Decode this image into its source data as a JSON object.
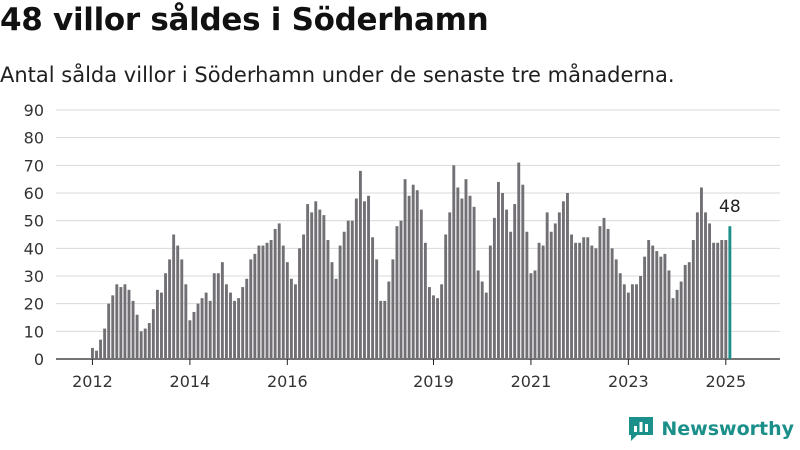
{
  "header": {
    "title": "48 villor såldes i Söderhamn",
    "subtitle": "Antal sålda villor i Söderhamn under de senaste tre månaderna."
  },
  "brand": {
    "name": "Newsworthy"
  },
  "colors": {
    "bar": "#727075",
    "highlight": "#1b8f8a",
    "grid": "#d9d9d9",
    "axis": "#222222"
  },
  "chart_data": {
    "type": "bar",
    "ylim": [
      0,
      90
    ],
    "yticks": [
      0,
      10,
      20,
      30,
      40,
      50,
      60,
      70,
      80,
      90
    ],
    "grid": true,
    "xticks": [
      {
        "label": "2012",
        "x": "2012-01"
      },
      {
        "label": "2014",
        "x": "2014-01"
      },
      {
        "label": "2016",
        "x": "2016-01"
      },
      {
        "label": "2019",
        "x": "2019-01"
      },
      {
        "label": "2021",
        "x": "2021-01"
      },
      {
        "label": "2023",
        "x": "2023-01"
      },
      {
        "label": "2025",
        "x": "2025-01"
      }
    ],
    "x": [
      "2012-01",
      "2012-02",
      "2012-03",
      "2012-04",
      "2012-05",
      "2012-06",
      "2012-07",
      "2012-08",
      "2012-09",
      "2012-10",
      "2012-11",
      "2012-12",
      "2013-01",
      "2013-02",
      "2013-03",
      "2013-04",
      "2013-05",
      "2013-06",
      "2013-07",
      "2013-08",
      "2013-09",
      "2013-10",
      "2013-11",
      "2013-12",
      "2014-01",
      "2014-02",
      "2014-03",
      "2014-04",
      "2014-05",
      "2014-06",
      "2014-07",
      "2014-08",
      "2014-09",
      "2014-10",
      "2014-11",
      "2014-12",
      "2015-01",
      "2015-02",
      "2015-03",
      "2015-04",
      "2015-05",
      "2015-06",
      "2015-07",
      "2015-08",
      "2015-09",
      "2015-10",
      "2015-11",
      "2015-12",
      "2016-01",
      "2016-02",
      "2016-03",
      "2016-04",
      "2016-05",
      "2016-06",
      "2016-07",
      "2016-08",
      "2016-09",
      "2016-10",
      "2016-11",
      "2016-12",
      "2017-01",
      "2017-02",
      "2017-03",
      "2017-04",
      "2017-05",
      "2017-06",
      "2017-07",
      "2017-08",
      "2017-09",
      "2017-10",
      "2017-11",
      "2017-12",
      "2018-01",
      "2018-02",
      "2018-03",
      "2018-04",
      "2018-05",
      "2018-06",
      "2018-07",
      "2018-08",
      "2018-09",
      "2018-10",
      "2018-11",
      "2018-12",
      "2019-01",
      "2019-02",
      "2019-03",
      "2019-04",
      "2019-05",
      "2019-06",
      "2019-07",
      "2019-08",
      "2019-09",
      "2019-10",
      "2019-11",
      "2019-12",
      "2020-01",
      "2020-02",
      "2020-03",
      "2020-04",
      "2020-05",
      "2020-06",
      "2020-07",
      "2020-08",
      "2020-09",
      "2020-10",
      "2020-11",
      "2020-12",
      "2021-01",
      "2021-02",
      "2021-03",
      "2021-04",
      "2021-05",
      "2021-06",
      "2021-07",
      "2021-08",
      "2021-09",
      "2021-10",
      "2021-11",
      "2021-12",
      "2022-01",
      "2022-02",
      "2022-03",
      "2022-04",
      "2022-05",
      "2022-06",
      "2022-07",
      "2022-08",
      "2022-09",
      "2022-10",
      "2022-11",
      "2022-12",
      "2023-01",
      "2023-02",
      "2023-03",
      "2023-04",
      "2023-05",
      "2023-06",
      "2023-07",
      "2023-08",
      "2023-09",
      "2023-10",
      "2023-11",
      "2023-12",
      "2024-01",
      "2024-02",
      "2024-03",
      "2024-04",
      "2024-05",
      "2024-06",
      "2024-07",
      "2024-08",
      "2024-09",
      "2024-10",
      "2024-11",
      "2024-12",
      "2025-01",
      "2025-02"
    ],
    "values": [
      4,
      3,
      7,
      11,
      20,
      23,
      27,
      26,
      27,
      25,
      21,
      16,
      10,
      11,
      13,
      18,
      25,
      24,
      31,
      36,
      45,
      41,
      36,
      27,
      14,
      17,
      20,
      22,
      24,
      21,
      31,
      31,
      35,
      27,
      24,
      21,
      22,
      26,
      29,
      36,
      38,
      41,
      41,
      42,
      43,
      47,
      49,
      41,
      35,
      29,
      27,
      40,
      45,
      56,
      53,
      57,
      54,
      52,
      43,
      35,
      29,
      41,
      46,
      50,
      50,
      58,
      68,
      57,
      59,
      44,
      36,
      21,
      21,
      28,
      36,
      48,
      50,
      65,
      59,
      63,
      61,
      54,
      42,
      26,
      23,
      22,
      27,
      45,
      53,
      70,
      62,
      58,
      65,
      59,
      55,
      32,
      28,
      24,
      41,
      51,
      64,
      60,
      54,
      46,
      56,
      71,
      63,
      46,
      31,
      32,
      42,
      41,
      53,
      46,
      49,
      53,
      57,
      60,
      45,
      42,
      42,
      44,
      44,
      41,
      40,
      48,
      51,
      47,
      40,
      36,
      31,
      27,
      24,
      27,
      27,
      30,
      37,
      43,
      41,
      39,
      37,
      38,
      32,
      22,
      25,
      28,
      34,
      35,
      43,
      53,
      62,
      53,
      49,
      42,
      42,
      43,
      43,
      48
    ],
    "highlight_last": true,
    "data_labels": [
      {
        "x": "2025-02",
        "label": "48"
      }
    ]
  }
}
